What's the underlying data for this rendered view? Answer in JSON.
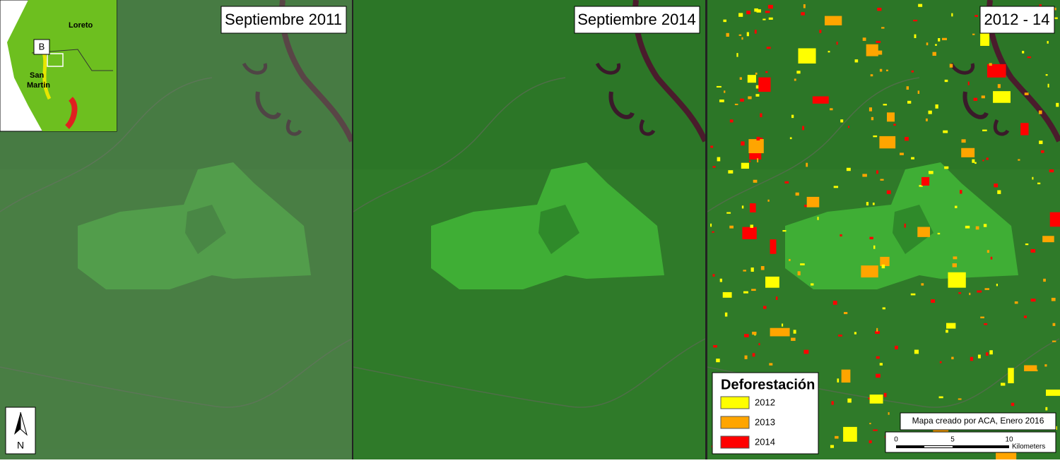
{
  "panels": [
    {
      "title": "Septiembre 2011"
    },
    {
      "title": "Septiembre 2014"
    },
    {
      "title": "2012 - 14"
    }
  ],
  "inset": {
    "region_north": "Loreto",
    "marker": "B",
    "region_south_lines": [
      "San",
      "Martin"
    ]
  },
  "north_arrow": "N",
  "legend": {
    "title": "Deforestación",
    "items": [
      {
        "label": "2012",
        "color": "#ffff00"
      },
      {
        "label": "2013",
        "color": "#ffa500"
      },
      {
        "label": "2014",
        "color": "#ff0000"
      }
    ]
  },
  "credit": "Mapa creado por ACA, Enero 2016",
  "scale_bar": {
    "ticks": [
      "0",
      "5",
      "10"
    ],
    "unit": "Kilometers"
  }
}
